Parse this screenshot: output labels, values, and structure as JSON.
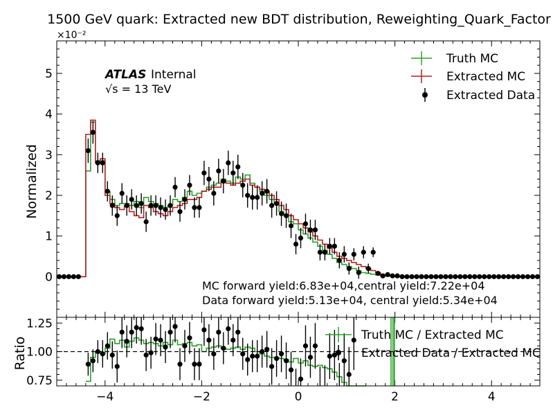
{
  "chart_data": [
    {
      "type": "line",
      "title": "1500 GeV quark: Extracted new BDT distribution, Reweighting_Quark_Factor",
      "ylabel": "Normalized",
      "y_scale_label": "×10⁻²",
      "xlim": [
        -5,
        5
      ],
      "ylim": [
        -1.0,
        5.8
      ],
      "y_ticks": [
        0,
        1,
        2,
        3,
        4,
        5
      ],
      "y_tick_labels": [
        "0",
        "1",
        "2",
        "3",
        "4",
        "5"
      ],
      "grid": false,
      "legend_position": "top-right",
      "legend": [
        "Truth MC",
        "Extracted MC",
        "Extracted Data"
      ],
      "atlas_label": "ATLAS",
      "atlas_suffix": "Internal",
      "energy_label": "√s = 13 TeV",
      "annotations": [
        "MC forward yield:6.83e+04,central yield:7.22e+04",
        "Data forward yield:5.13e+04, central yield:5.34e+04"
      ],
      "bin_width": 0.1,
      "bin_starts": [
        -5.0,
        -4.9,
        -4.8,
        -4.7,
        -4.6,
        -4.5,
        -4.4,
        -4.3,
        -4.2,
        -4.1,
        -4.0,
        -3.9,
        -3.8,
        -3.7,
        -3.6,
        -3.5,
        -3.4,
        -3.3,
        -3.2,
        -3.1,
        -3.0,
        -2.9,
        -2.8,
        -2.7,
        -2.6,
        -2.5,
        -2.4,
        -2.3,
        -2.2,
        -2.1,
        -2.0,
        -1.9,
        -1.8,
        -1.7,
        -1.6,
        -1.5,
        -1.4,
        -1.3,
        -1.2,
        -1.1,
        -1.0,
        -0.9,
        -0.8,
        -0.7,
        -0.6,
        -0.5,
        -0.4,
        -0.3,
        -0.2,
        -0.1,
        0.0,
        0.1,
        0.2,
        0.3,
        0.4,
        0.5,
        0.6,
        0.7,
        0.8,
        0.9,
        1.0,
        1.1,
        1.2,
        1.3,
        1.4,
        1.5,
        1.6,
        1.7,
        1.8,
        1.9,
        2.0,
        2.1,
        2.2,
        2.3,
        2.4,
        2.5,
        2.6,
        2.7,
        2.8,
        2.9,
        3.0,
        3.1,
        3.2,
        3.3,
        3.4,
        3.5,
        3.6,
        3.7,
        3.8,
        3.9,
        4.0,
        4.1,
        4.2,
        4.3,
        4.4,
        4.5,
        4.6,
        4.7,
        4.8,
        4.9
      ],
      "series": [
        {
          "name": "Truth MC",
          "color": "#2ca02c",
          "style": "step",
          "values": [
            0,
            0,
            0,
            0,
            0,
            0,
            2.6,
            3.8,
            2.85,
            2.85,
            2.1,
            1.9,
            1.75,
            1.8,
            1.8,
            1.75,
            1.85,
            1.7,
            1.95,
            1.85,
            1.8,
            1.75,
            1.7,
            1.75,
            1.9,
            1.85,
            1.95,
            2.1,
            2.0,
            2.05,
            2.1,
            2.2,
            2.25,
            2.3,
            2.4,
            2.35,
            2.3,
            2.45,
            2.4,
            2.5,
            2.3,
            2.2,
            2.1,
            2.0,
            1.9,
            1.8,
            1.6,
            1.5,
            1.35,
            1.3,
            1.15,
            1.05,
            0.95,
            0.85,
            0.75,
            0.65,
            0.55,
            0.45,
            0.35,
            0.3,
            0.25,
            0.2,
            0.15,
            0.1,
            0.08,
            0.06,
            0.04,
            0.02,
            0.01,
            0.01,
            0,
            0,
            0,
            0,
            0,
            0,
            0,
            0,
            0,
            0,
            0,
            0,
            0,
            0,
            0,
            0,
            0,
            0,
            0,
            0,
            0,
            0,
            0,
            0,
            0,
            0,
            0,
            0,
            0,
            0
          ]
        },
        {
          "name": "Extracted MC",
          "color": "#b22222",
          "style": "step",
          "values": [
            0,
            0,
            0,
            0,
            0,
            0,
            3.5,
            3.85,
            2.8,
            2.9,
            2.0,
            1.8,
            1.7,
            1.65,
            1.75,
            1.6,
            1.5,
            1.45,
            1.75,
            1.7,
            1.6,
            1.55,
            1.5,
            1.6,
            1.7,
            1.75,
            1.8,
            1.9,
            1.9,
            1.95,
            2.1,
            2.15,
            2.2,
            2.2,
            2.35,
            2.3,
            2.25,
            2.3,
            2.35,
            2.4,
            2.25,
            2.2,
            2.15,
            2.1,
            2.0,
            1.9,
            1.75,
            1.65,
            1.5,
            1.4,
            1.3,
            1.2,
            1.1,
            1.0,
            0.9,
            0.8,
            0.7,
            0.6,
            0.5,
            0.45,
            0.4,
            0.35,
            0.3,
            0.25,
            0.2,
            0.15,
            0.1,
            0.05,
            0.03,
            0.02,
            0,
            0,
            0,
            0,
            0,
            0,
            0,
            0,
            0,
            0,
            0,
            0,
            0,
            0,
            0,
            0,
            0,
            0,
            0,
            0,
            0,
            0,
            0,
            0,
            0,
            0,
            0,
            0,
            0,
            0
          ]
        },
        {
          "name": "Extracted Data",
          "color": "#000000",
          "style": "errorbar",
          "x": [
            -4.95,
            -4.85,
            -4.75,
            -4.65,
            -4.55,
            -4.35,
            -4.25,
            -4.15,
            -4.05,
            -3.95,
            -3.85,
            -3.75,
            -3.65,
            -3.55,
            -3.45,
            -3.35,
            -3.25,
            -3.15,
            -3.05,
            -2.95,
            -2.85,
            -2.75,
            -2.65,
            -2.55,
            -2.45,
            -2.35,
            -2.25,
            -2.15,
            -2.05,
            -1.95,
            -1.85,
            -1.75,
            -1.65,
            -1.55,
            -1.45,
            -1.35,
            -1.25,
            -1.15,
            -1.05,
            -0.95,
            -0.85,
            -0.75,
            -0.65,
            -0.55,
            -0.45,
            -0.35,
            -0.25,
            -0.15,
            -0.05,
            0.05,
            0.15,
            0.25,
            0.35,
            0.45,
            0.55,
            0.65,
            0.75,
            0.85,
            0.95,
            1.05,
            1.15,
            1.25,
            1.35,
            1.45,
            1.55,
            1.65,
            1.75,
            1.85,
            1.95,
            2.05,
            2.15,
            2.25,
            2.35,
            2.45,
            2.55,
            2.65,
            2.75,
            2.85,
            2.95,
            3.05,
            3.15,
            3.25,
            3.35,
            3.45,
            3.55,
            3.65,
            3.75,
            3.85,
            3.95,
            4.05,
            4.15,
            4.25,
            4.35,
            4.45,
            4.55,
            4.65,
            4.75,
            4.85,
            4.95
          ],
          "values": [
            0,
            0,
            0,
            0,
            0,
            3.1,
            3.55,
            2.8,
            2.8,
            2.1,
            1.75,
            1.5,
            2.05,
            1.75,
            1.9,
            1.75,
            1.8,
            1.35,
            1.75,
            1.75,
            1.7,
            1.65,
            1.75,
            2.2,
            1.6,
            1.9,
            2.25,
            1.7,
            1.7,
            2.55,
            2.4,
            2.05,
            2.6,
            2.35,
            2.8,
            2.55,
            2.7,
            2.25,
            2.0,
            1.95,
            1.95,
            2.05,
            2.1,
            1.75,
            1.8,
            1.55,
            1.5,
            1.25,
            0.8,
            0.95,
            1.3,
            1.15,
            1.15,
            0.6,
            0.6,
            0.75,
            0.75,
            0.4,
            0.55,
            0.2,
            0.55,
            0.1,
            0.6,
            0.2,
            0.6,
            0.08,
            0.02,
            0.05,
            0.02,
            0.02,
            0,
            0,
            0,
            0,
            0,
            0,
            0,
            0,
            0,
            0,
            0,
            0,
            0,
            0,
            0,
            0,
            0,
            0,
            0,
            0,
            0,
            0,
            0,
            0,
            0,
            0,
            0,
            0,
            0
          ],
          "errors": [
            0.02,
            0.02,
            0.02,
            0.02,
            0.02,
            0.3,
            0.28,
            0.25,
            0.25,
            0.25,
            0.25,
            0.25,
            0.25,
            0.25,
            0.25,
            0.25,
            0.25,
            0.25,
            0.25,
            0.25,
            0.25,
            0.25,
            0.25,
            0.25,
            0.25,
            0.25,
            0.25,
            0.25,
            0.25,
            0.3,
            0.3,
            0.3,
            0.3,
            0.3,
            0.3,
            0.3,
            0.3,
            0.3,
            0.3,
            0.3,
            0.3,
            0.3,
            0.3,
            0.3,
            0.3,
            0.3,
            0.3,
            0.3,
            0.25,
            0.25,
            0.25,
            0.25,
            0.25,
            0.2,
            0.2,
            0.2,
            0.2,
            0.2,
            0.2,
            0.15,
            0.15,
            0.15,
            0.15,
            0.12,
            0.12,
            0.05,
            0.03,
            0.03,
            0.02,
            0.02,
            0.02,
            0.02,
            0.02,
            0.02,
            0.02,
            0.02,
            0.02,
            0.02,
            0.02,
            0.02,
            0.02,
            0.02,
            0.02,
            0.02,
            0.02,
            0.02,
            0.02,
            0.02,
            0.02,
            0.02,
            0.02,
            0.02,
            0.02,
            0.02,
            0.02,
            0.02,
            0.02,
            0.02,
            0.02
          ]
        }
      ]
    },
    {
      "type": "line",
      "ylabel": "Ratio",
      "xlim": [
        -5,
        5
      ],
      "ylim": [
        0.7,
        1.3
      ],
      "y_ticks": [
        0.75,
        1.0,
        1.25
      ],
      "y_tick_labels": [
        "0.75",
        "1.00",
        "1.25"
      ],
      "x_ticks": [
        -4,
        -2,
        0,
        2,
        4
      ],
      "x_tick_labels": [
        "−4",
        "−2",
        "0",
        "2",
        "4"
      ],
      "reference_line": 1.0,
      "legend_position": "top-right",
      "legend": [
        "Truth MC / Extracted MC",
        "Extracted Data / Extracted MC"
      ],
      "series": [
        {
          "name": "Truth MC / Extracted MC",
          "color": "#2ca02c",
          "style": "step",
          "bin_starts": [
            -4.4,
            -4.3,
            -4.2,
            -4.1,
            -4.0,
            -3.9,
            -3.8,
            -3.7,
            -3.6,
            -3.5,
            -3.4,
            -3.3,
            -3.2,
            -3.1,
            -3.0,
            -2.9,
            -2.8,
            -2.7,
            -2.6,
            -2.5,
            -2.4,
            -2.3,
            -2.2,
            -2.1,
            -2.0,
            -1.9,
            -1.8,
            -1.7,
            -1.6,
            -1.5,
            -1.4,
            -1.3,
            -1.2,
            -1.1,
            -1.0,
            -0.9,
            -0.8,
            -0.7,
            -0.6,
            -0.5,
            -0.4,
            -0.3,
            -0.2,
            -0.1,
            0.0,
            0.1,
            0.2,
            0.3,
            0.4,
            0.5,
            0.6,
            0.7,
            0.8,
            0.9,
            1.0,
            1.1,
            1.2,
            1.3
          ],
          "values": [
            0.74,
            0.95,
            1.0,
            0.98,
            1.03,
            1.11,
            1.07,
            1.1,
            1.04,
            1.09,
            1.12,
            1.1,
            1.07,
            1.08,
            1.07,
            1.05,
            1.08,
            1.06,
            1.1,
            1.06,
            1.07,
            1.08,
            1.05,
            1.06,
            1.0,
            1.03,
            1.04,
            1.05,
            1.03,
            1.02,
            1.03,
            1.04,
            1.02,
            1.04,
            1.03,
            1.0,
            0.98,
            0.96,
            0.95,
            0.95,
            0.94,
            0.93,
            0.91,
            0.94,
            0.9,
            0.92,
            0.88,
            0.87,
            0.88,
            0.86,
            0.85,
            0.82,
            0.78,
            0.73,
            0.7,
            0.7,
            0.7,
            0.7
          ]
        },
        {
          "name": "Extracted Data / Extracted MC",
          "color": "#000000",
          "style": "errorbar",
          "x": [
            -4.35,
            -4.25,
            -4.15,
            -4.05,
            -3.95,
            -3.85,
            -3.75,
            -3.65,
            -3.55,
            -3.45,
            -3.35,
            -3.25,
            -3.15,
            -3.05,
            -2.95,
            -2.85,
            -2.75,
            -2.65,
            -2.55,
            -2.45,
            -2.35,
            -2.25,
            -2.15,
            -2.05,
            -1.95,
            -1.85,
            -1.75,
            -1.65,
            -1.55,
            -1.45,
            -1.35,
            -1.25,
            -1.15,
            -1.05,
            -0.95,
            -0.85,
            -0.75,
            -0.65,
            -0.55,
            -0.45,
            -0.35,
            -0.25,
            -0.15,
            -0.05,
            0.05,
            0.15,
            0.25,
            0.35,
            0.45,
            0.55,
            0.65,
            0.75,
            0.85,
            0.95,
            1.05,
            1.15
          ],
          "values": [
            0.89,
            0.92,
            1.0,
            0.98,
            1.05,
            0.97,
            0.87,
            1.17,
            1.09,
            1.17,
            1.21,
            1.2,
            0.97,
            0.99,
            1.11,
            1.1,
            1.04,
            1.17,
            1.22,
            0.89,
            1.05,
            1.12,
            0.89,
            0.89,
            1.19,
            1.1,
            0.98,
            1.17,
            1.03,
            1.2,
            1.1,
            1.17,
            0.98,
            0.93,
            0.96,
            0.96,
            1.0,
            1.02,
            0.87,
            0.94,
            0.98,
            0.92,
            0.84,
            0.67,
            0.76,
            1.05,
            0.95,
            1.05,
            0.67,
            0.68,
            0.96,
            0.97,
            0.68,
            0.92,
            0.8,
            1.1
          ],
          "errors": [
            0.1,
            0.1,
            0.1,
            0.12,
            0.12,
            0.12,
            0.14,
            0.14,
            0.14,
            0.14,
            0.14,
            0.14,
            0.14,
            0.14,
            0.14,
            0.14,
            0.14,
            0.14,
            0.14,
            0.14,
            0.14,
            0.14,
            0.14,
            0.14,
            0.14,
            0.14,
            0.14,
            0.14,
            0.14,
            0.14,
            0.14,
            0.14,
            0.14,
            0.14,
            0.14,
            0.14,
            0.14,
            0.16,
            0.16,
            0.16,
            0.16,
            0.16,
            0.16,
            0.18,
            0.18,
            0.18,
            0.18,
            0.2,
            0.2,
            0.2,
            0.2,
            0.22,
            0.22,
            0.24,
            0.24,
            0.26
          ]
        },
        {
          "name": "",
          "color": "#2ca02c",
          "style": "vlines",
          "x": [
            1.92,
            1.96,
            1.99
          ]
        }
      ]
    }
  ]
}
